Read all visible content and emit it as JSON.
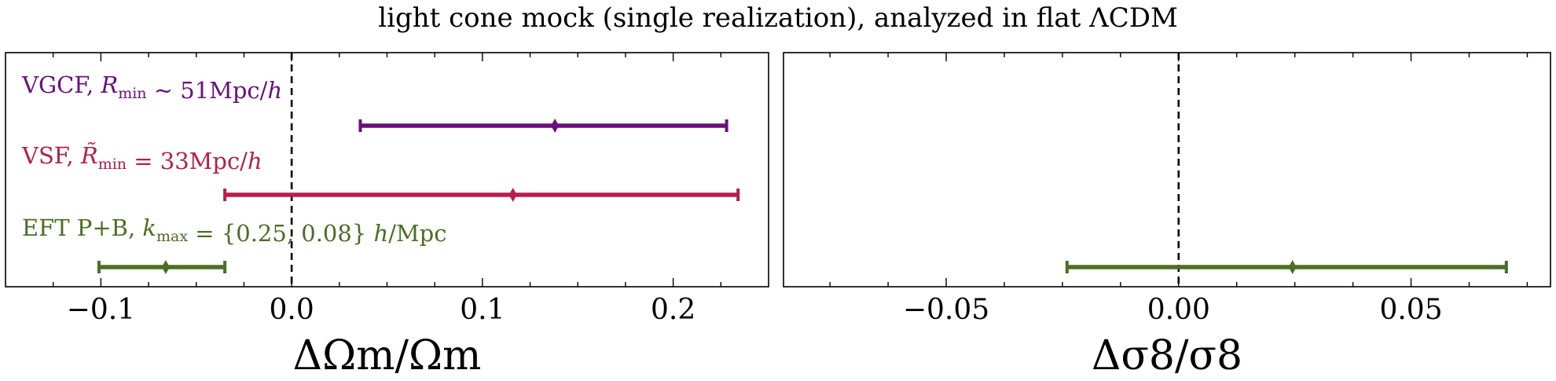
{
  "title": "light cone mock (single realization), analyzed in flat ΛCDM",
  "legend_placement": "labels above each error bar, left side",
  "chart_data": [
    {
      "type": "errorbar",
      "xlabel": "ΔΩm/Ωm",
      "xlim": [
        -0.15,
        0.25
      ],
      "major_ticks": [
        -0.1,
        0.0,
        0.1,
        0.2
      ],
      "tick_labels": [
        "−0.1",
        "0.0",
        "0.1",
        "0.2"
      ],
      "reference_line": 0.0,
      "grid": false,
      "series": [
        {
          "name": "VGCF, Rmin ∼ 51Mpc/h",
          "color": "#6a0f7c",
          "center": 0.138,
          "low": 0.036,
          "high": 0.228
        },
        {
          "name": "VSF, R̃min = 33Mpc/h",
          "color": "#b81e4b",
          "center": 0.116,
          "low": -0.035,
          "high": 0.234
        },
        {
          "name": "EFT P+B, kmax = {0.25, 0.08} h/Mpc",
          "color": "#4a6e23",
          "center": -0.066,
          "low": -0.101,
          "high": -0.035
        }
      ]
    },
    {
      "type": "errorbar",
      "xlabel": "Δσ8/σ8",
      "xlim": [
        -0.085,
        0.08
      ],
      "major_ticks": [
        -0.05,
        0.0,
        0.05
      ],
      "tick_labels": [
        "−0.05",
        "0.00",
        "0.05"
      ],
      "reference_line": 0.0,
      "grid": false,
      "series": [
        {
          "name": "EFT P+B, kmax = {0.25, 0.08} h/Mpc",
          "color": "#4a6e23",
          "center": 0.0245,
          "low": -0.024,
          "high": 0.0705
        }
      ]
    }
  ]
}
